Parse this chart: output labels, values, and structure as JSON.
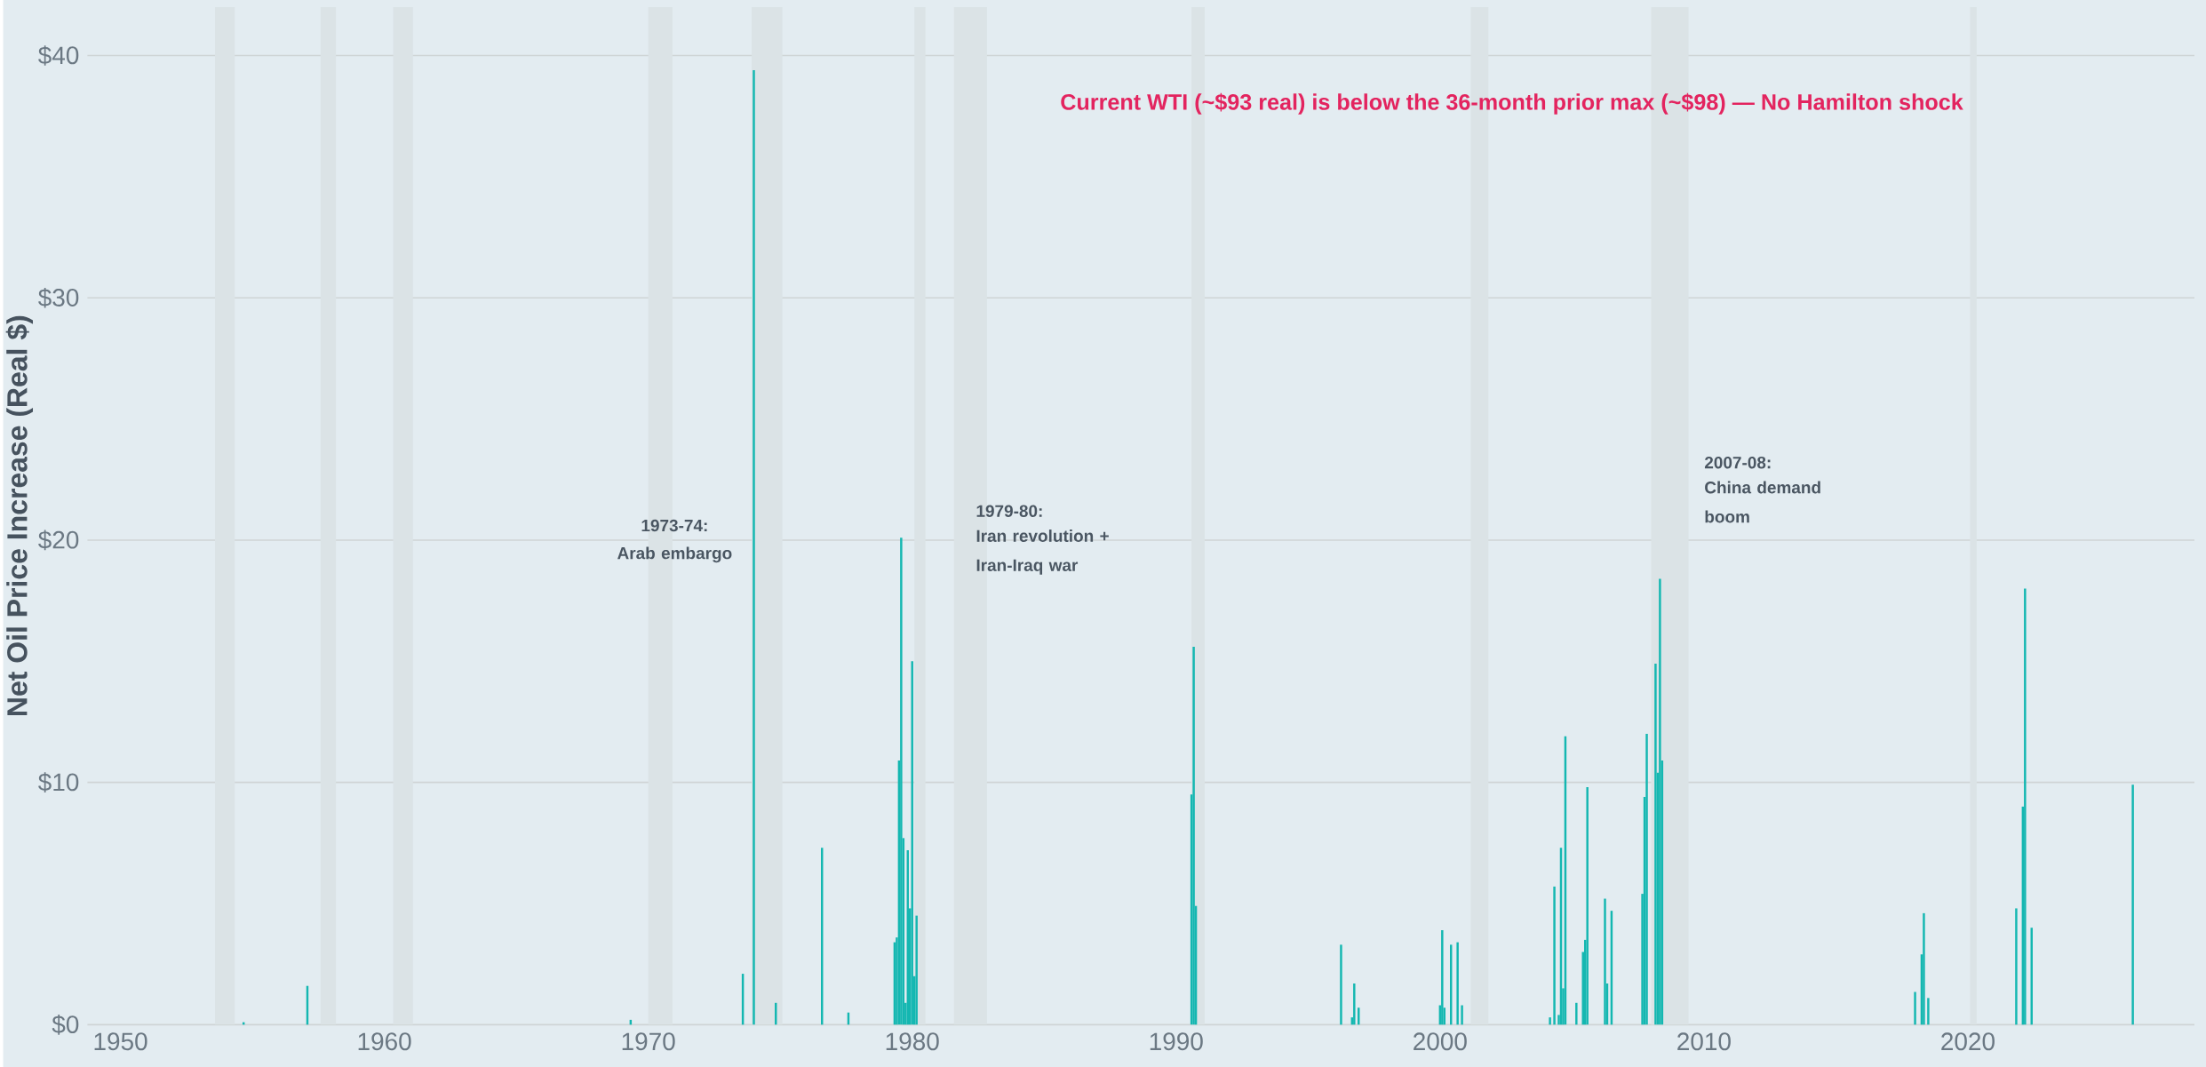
{
  "chart_data": {
    "type": "bar",
    "ylabel": "Net Oil Price Increase (Real $)",
    "color": "#14b7b1",
    "x": [
      "1954-09",
      "1957-02",
      "1969-05",
      "1973-08",
      "1974-01",
      "1974-11",
      "1976-08",
      "1977-08",
      "1979-05",
      "1979-06",
      "1979-07",
      "1979-08",
      "1979-09",
      "1979-10",
      "1979-11",
      "1979-12",
      "1980-01",
      "1980-02",
      "1980-03",
      "1990-08",
      "1990-09",
      "1990-10",
      "1996-04",
      "1996-09",
      "1996-10",
      "1996-12",
      "2000-01",
      "2000-02",
      "2000-03",
      "2000-06",
      "2000-09",
      "2000-11",
      "2004-03",
      "2004-05",
      "2004-07",
      "2004-08",
      "2004-09",
      "2004-10",
      "2005-03",
      "2005-06",
      "2005-07",
      "2005-08",
      "2006-04",
      "2006-05",
      "2006-07",
      "2007-09",
      "2007-10",
      "2007-11",
      "2008-03",
      "2008-04",
      "2008-05",
      "2008-06",
      "2018-01",
      "2018-04",
      "2018-05",
      "2018-07",
      "2021-11",
      "2022-02",
      "2022-03",
      "2022-06",
      "2026-04"
    ],
    "values": [
      0.1,
      1.6,
      0.2,
      2.1,
      39.4,
      0.9,
      7.3,
      0.5,
      3.4,
      3.6,
      10.9,
      20.1,
      7.7,
      0.9,
      7.2,
      4.8,
      15.0,
      2.0,
      4.5,
      9.5,
      15.6,
      4.9,
      3.3,
      0.3,
      1.7,
      0.7,
      0.8,
      3.9,
      0.7,
      3.3,
      3.4,
      0.8,
      0.3,
      5.7,
      0.4,
      7.3,
      1.5,
      11.9,
      0.9,
      3.0,
      3.5,
      9.8,
      5.2,
      1.7,
      4.7,
      5.4,
      9.4,
      12.0,
      14.9,
      10.4,
      18.4,
      10.9,
      1.35,
      2.9,
      4.6,
      1.1,
      4.8,
      9.0,
      18.0,
      4.0,
      9.9
    ],
    "xlim": [
      "1948-10",
      "2028-08"
    ],
    "xticks": [
      "1950",
      "1960",
      "1970",
      "1980",
      "1990",
      "2000",
      "2010",
      "2020"
    ],
    "ylim": [
      0,
      42
    ],
    "yticks": [
      {
        "value": 0,
        "label": "$0"
      },
      {
        "value": 10,
        "label": "$10"
      },
      {
        "value": 20,
        "label": "$20"
      },
      {
        "value": 30,
        "label": "$30"
      },
      {
        "value": 40,
        "label": "$40"
      }
    ],
    "grid": "y",
    "bands": [
      {
        "axis": "x",
        "from": "1953-08",
        "to": "1954-05",
        "color": "#dbe3e6"
      },
      {
        "axis": "x",
        "from": "1957-08",
        "to": "1958-03",
        "color": "#dbe3e6"
      },
      {
        "axis": "x",
        "from": "1960-05",
        "to": "1961-02",
        "color": "#dbe3e6"
      },
      {
        "axis": "x",
        "from": "1970-01",
        "to": "1970-12",
        "color": "#dbe3e6"
      },
      {
        "axis": "x",
        "from": "1973-12",
        "to": "1975-02",
        "color": "#dbe3e6"
      },
      {
        "axis": "x",
        "from": "1980-02",
        "to": "1980-07",
        "color": "#dbe3e6"
      },
      {
        "axis": "x",
        "from": "1981-08",
        "to": "1982-11",
        "color": "#dbe3e6"
      },
      {
        "axis": "x",
        "from": "1990-08",
        "to": "1991-02",
        "color": "#dbe3e6"
      },
      {
        "axis": "x",
        "from": "2001-03",
        "to": "2001-11",
        "color": "#dbe3e6"
      },
      {
        "axis": "x",
        "from": "2008-01",
        "to": "2009-06",
        "color": "#dbe3e6"
      },
      {
        "axis": "x",
        "from": "2020-02",
        "to": "2020-05",
        "color": "#dbe3e6"
      }
    ],
    "annotations": [
      "1973-74:",
      "Arab embargo",
      "1979-80:",
      "Iran revolution + Iran-Iraq war",
      "2007-08:",
      "China demand boom",
      "Current WTI (~$93 real) is below the 36-month prior max (~$98) — No Hamilton shock"
    ]
  }
}
